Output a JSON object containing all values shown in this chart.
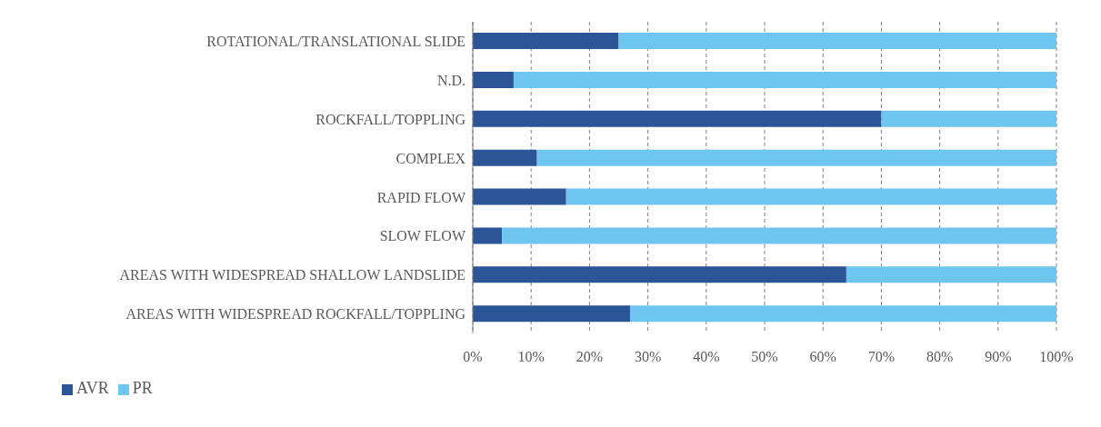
{
  "chart_data": {
    "type": "bar",
    "orientation": "horizontal",
    "stacked": true,
    "categories": [
      "ROTATIONAL/TRANSLATIONAL SLIDE",
      "N.D.",
      "ROCKFALL/TOPPLING",
      "COMPLEX",
      "RAPID FLOW",
      "SLOW FLOW",
      "AREAS WITH WIDESPREAD SHALLOW LANDSLIDE",
      "AREAS WITH WIDESPREAD ROCKFALL/TOPPLING"
    ],
    "series": [
      {
        "name": "AVR",
        "color": "#2b5597",
        "values": [
          25,
          7,
          70,
          11,
          16,
          5,
          64,
          27
        ]
      },
      {
        "name": "PR",
        "color": "#6ec6ef",
        "values": [
          75,
          93,
          30,
          89,
          84,
          95,
          36,
          73
        ]
      }
    ],
    "xlim": [
      0,
      100
    ],
    "xticks": [
      {
        "value": 0,
        "label": "0%"
      },
      {
        "value": 10,
        "label": "10%"
      },
      {
        "value": 20,
        "label": "20%"
      },
      {
        "value": 30,
        "label": "30%"
      },
      {
        "value": 40,
        "label": "40%"
      },
      {
        "value": 50,
        "label": "50%"
      },
      {
        "value": 60,
        "label": "60%"
      },
      {
        "value": 70,
        "label": "70%"
      },
      {
        "value": 80,
        "label": "80%"
      },
      {
        "value": 90,
        "label": "90%"
      },
      {
        "value": 100,
        "label": "100%"
      }
    ],
    "grid": "x",
    "legend": "bottom left"
  }
}
